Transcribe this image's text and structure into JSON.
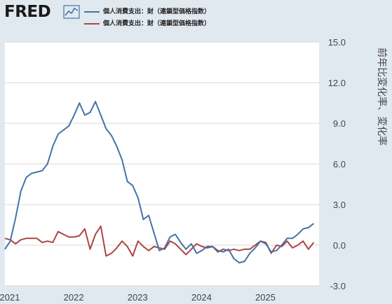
{
  "header": {
    "logo_text": "FRED",
    "logo_icon": "line-chart-icon"
  },
  "colors": {
    "background": "#e1e9f0",
    "plot_background": "#ffffff",
    "series1": "#4572a7",
    "series2": "#aa4643",
    "grid": "#d9d9d9"
  },
  "chart_data": {
    "type": "line",
    "ylabel": "前年比変化率、変化率",
    "ylim": [
      -3.0,
      15.0
    ],
    "yticks": [
      "15.0",
      "12.0",
      "9.0",
      "6.0",
      "3.0",
      "0.0",
      "-3.0"
    ],
    "xticks": [
      "2021",
      "2022",
      "2023",
      "2024",
      "2025"
    ],
    "x_range": [
      "2021-01",
      "2025-12"
    ],
    "grid": true,
    "legend_position": "top-left",
    "x": [
      "2021-01",
      "2021-02",
      "2021-03",
      "2021-04",
      "2021-05",
      "2021-06",
      "2021-07",
      "2021-08",
      "2021-09",
      "2021-10",
      "2021-11",
      "2021-12",
      "2022-01",
      "2022-02",
      "2022-03",
      "2022-04",
      "2022-05",
      "2022-06",
      "2022-07",
      "2022-08",
      "2022-09",
      "2022-10",
      "2022-11",
      "2022-12",
      "2023-01",
      "2023-02",
      "2023-03",
      "2023-04",
      "2023-05",
      "2023-06",
      "2023-07",
      "2023-08",
      "2023-09",
      "2023-10",
      "2023-11",
      "2023-12",
      "2024-01",
      "2024-02",
      "2024-03",
      "2024-04",
      "2024-05",
      "2024-06",
      "2024-07",
      "2024-08",
      "2024-09",
      "2024-10",
      "2024-11",
      "2024-12",
      "2025-01",
      "2025-02",
      "2025-03",
      "2025-04",
      "2025-05",
      "2025-06",
      "2025-07",
      "2025-08",
      "2025-09",
      "2025-10",
      "2025-11"
    ],
    "series": [
      {
        "name": "個人消費支出：財（連鎖型価格指数）",
        "color": "#4572a7",
        "values": [
          -0.3,
          0.3,
          2.0,
          4.0,
          5.0,
          5.3,
          5.4,
          5.5,
          6.0,
          7.3,
          8.2,
          8.5,
          8.8,
          9.6,
          10.5,
          9.6,
          9.8,
          10.6,
          9.6,
          8.6,
          8.1,
          7.3,
          6.3,
          4.7,
          4.4,
          3.5,
          1.9,
          2.2,
          0.9,
          -0.4,
          -0.2,
          0.6,
          0.8,
          0.2,
          -0.3,
          0.1,
          -0.6,
          -0.4,
          -0.1,
          -0.1,
          -0.4,
          -0.5,
          -0.3,
          -1.0,
          -1.3,
          -1.2,
          -0.6,
          -0.2,
          0.3,
          0.1,
          -0.5,
          -0.4,
          0.0,
          0.5,
          0.5,
          0.8,
          1.2,
          1.3,
          1.6
        ]
      },
      {
        "name": "個人消費支出：財（連鎖型価格指数）",
        "color": "#aa4643",
        "values": [
          0.5,
          0.4,
          0.1,
          0.4,
          0.5,
          0.5,
          0.5,
          0.2,
          0.3,
          0.2,
          1.0,
          0.8,
          0.6,
          0.6,
          0.7,
          1.2,
          -0.3,
          0.8,
          1.4,
          -0.8,
          -0.6,
          -0.2,
          0.3,
          -0.1,
          -0.8,
          0.3,
          -0.1,
          -0.4,
          -0.1,
          -0.2,
          -0.3,
          0.3,
          0.1,
          -0.3,
          -0.7,
          -0.3,
          0.1,
          -0.1,
          -0.2,
          -0.1,
          -0.5,
          -0.3,
          -0.4,
          -0.3,
          -0.4,
          -0.3,
          -0.3,
          0.0,
          0.3,
          0.2,
          -0.6,
          0.0,
          -0.1,
          0.3,
          -0.2,
          0.0,
          0.3,
          -0.3,
          0.2
        ]
      }
    ]
  }
}
